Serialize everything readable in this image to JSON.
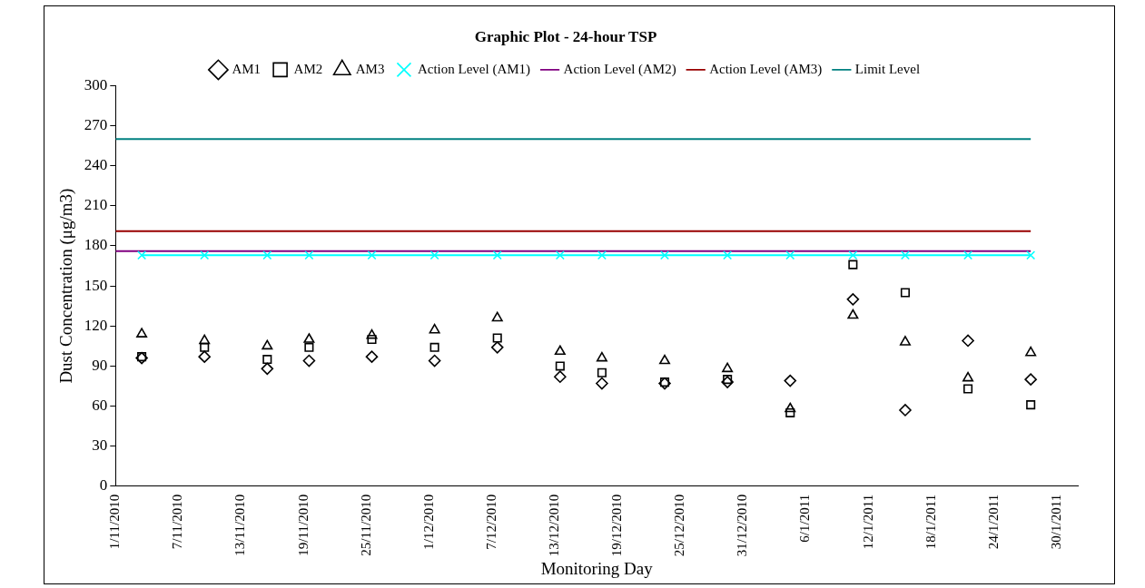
{
  "chart_data": {
    "type": "scatter",
    "title": "Graphic Plot - 24-hour TSP",
    "xlabel": "Monitoring Day",
    "ylabel": "Dust Concentration (μg/m3)",
    "x": [
      "2010-11-03T12:00",
      "2010-11-09T12:00",
      "2010-11-15T12:00",
      "2010-11-19T12:00",
      "2010-11-25T12:00",
      "2010-12-01T12:00",
      "2010-12-07T12:00",
      "2010-12-13T12:00",
      "2010-12-17T12:00",
      "2010-12-23T12:00",
      "2010-12-29T12:00",
      "2011-01-04T12:00",
      "2011-01-10T12:00",
      "2011-01-15T12:00",
      "2011-01-21T12:00",
      "2011-01-27T12:00"
    ],
    "series": [
      {
        "name": "AM1",
        "marker": "diamond",
        "color": "#000000",
        "values": [
          96,
          97,
          88,
          94,
          97,
          94,
          104,
          82,
          77,
          77,
          78,
          79,
          140,
          57,
          109,
          80
        ]
      },
      {
        "name": "AM2",
        "marker": "square",
        "color": "#000000",
        "values": [
          97,
          104,
          95,
          104,
          110,
          104,
          111,
          90,
          85,
          78,
          80,
          55,
          166,
          145,
          73,
          61
        ]
      },
      {
        "name": "AM3",
        "marker": "triangle",
        "color": "#000000",
        "values": [
          114,
          109,
          105,
          110,
          113,
          117,
          126,
          101,
          96,
          94,
          88,
          58,
          128,
          108,
          81,
          100
        ]
      },
      {
        "name": "Action Level (AM1)",
        "type": "line",
        "marker": "cross",
        "color": "#00ffff",
        "values": [
          173,
          173,
          173,
          173,
          173,
          173,
          173,
          173,
          173,
          173,
          173,
          173,
          173,
          173,
          173,
          173
        ]
      },
      {
        "name": "Action Level (AM2)",
        "type": "line",
        "marker": "none",
        "color": "#800080",
        "x": [
          "2010-11-01",
          "2011-01-27T12:00"
        ],
        "values": [
          176,
          176
        ]
      },
      {
        "name": "Action Level (AM3)",
        "type": "line",
        "marker": "none",
        "color": "#990000",
        "x": [
          "2010-11-01",
          "2011-01-27T12:00"
        ],
        "values": [
          191,
          191
        ]
      },
      {
        "name": "Limit Level",
        "type": "line",
        "marker": "none",
        "color": "#008080",
        "x": [
          "2010-11-01",
          "2011-01-27T12:00"
        ],
        "values": [
          260,
          260
        ]
      }
    ],
    "xlim": [
      "2010-11-01",
      "2011-02-01"
    ],
    "xticks": [
      {
        "value": "2010-11-01",
        "label": "1/11/2010"
      },
      {
        "value": "2010-11-07",
        "label": "7/11/2010"
      },
      {
        "value": "2010-11-13",
        "label": "13/11/2010"
      },
      {
        "value": "2010-11-19",
        "label": "19/11/2010"
      },
      {
        "value": "2010-11-25",
        "label": "25/11/2010"
      },
      {
        "value": "2010-12-01",
        "label": "1/12/2010"
      },
      {
        "value": "2010-12-07",
        "label": "7/12/2010"
      },
      {
        "value": "2010-12-13",
        "label": "13/12/2010"
      },
      {
        "value": "2010-12-19",
        "label": "19/12/2010"
      },
      {
        "value": "2010-12-25",
        "label": "25/12/2010"
      },
      {
        "value": "2010-12-31",
        "label": "31/12/2010"
      },
      {
        "value": "2011-01-06",
        "label": "6/1/2011"
      },
      {
        "value": "2011-01-12",
        "label": "12/1/2011"
      },
      {
        "value": "2011-01-18",
        "label": "18/1/2011"
      },
      {
        "value": "2011-01-24",
        "label": "24/1/2011"
      },
      {
        "value": "2011-01-30",
        "label": "30/1/2011"
      }
    ],
    "ylim": [
      0,
      300
    ],
    "yticks": [
      0,
      30,
      60,
      90,
      120,
      150,
      180,
      210,
      240,
      270,
      300
    ],
    "grid": false,
    "legend": "top"
  }
}
